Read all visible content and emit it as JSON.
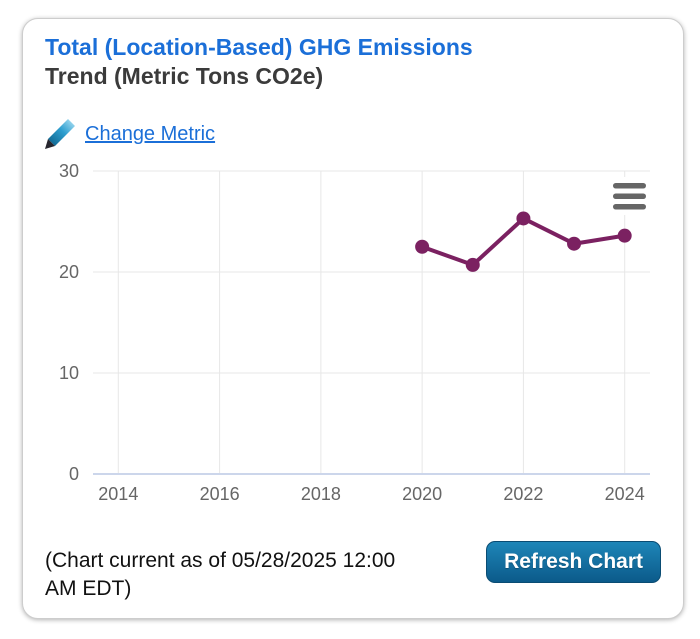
{
  "card": {
    "title_line1": "Total (Location-Based) GHG Emissions",
    "title_line2": "Trend (Metric Tons CO2e)",
    "change_metric_label": "Change Metric",
    "footer_note": "(Chart current as of 05/28/2025 12:00 AM EDT)",
    "refresh_button_label": "Refresh Chart"
  },
  "colors": {
    "title_blue": "#1b6fd8",
    "link_blue": "#1b6fd8",
    "series_purple": "#7b2161",
    "grid_gray": "#e7e7e7",
    "axis_line_lavender": "#ccd6eb",
    "axis_label_gray": "#666666",
    "menu_icon_gray": "#666666",
    "button_top": "#1e86b8",
    "button_bottom": "#0b5a8a"
  },
  "chart_data": {
    "type": "line",
    "x": [
      2020,
      2021,
      2022,
      2023,
      2024
    ],
    "values": [
      22.5,
      20.7,
      25.3,
      22.8,
      23.6
    ],
    "xticks": [
      2014,
      2016,
      2018,
      2020,
      2022,
      2024
    ],
    "yticks": [
      0,
      10,
      20,
      30
    ],
    "xlim": [
      2013.5,
      2024.5
    ],
    "ylim": [
      0,
      30
    ],
    "grid": true,
    "legend": false,
    "marker_radius": 7,
    "line_width": 4,
    "menu_icon": "hamburger-menu-icon"
  }
}
